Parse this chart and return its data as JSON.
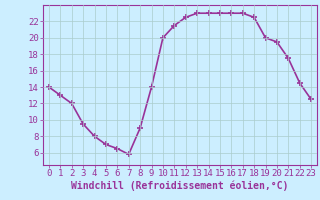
{
  "x": [
    0,
    1,
    2,
    3,
    4,
    5,
    6,
    7,
    8,
    9,
    10,
    11,
    12,
    13,
    14,
    15,
    16,
    17,
    18,
    19,
    20,
    21,
    22,
    23
  ],
  "y": [
    14,
    13,
    12,
    9.5,
    8,
    7,
    6.5,
    5.8,
    9,
    14,
    20,
    21.5,
    22.5,
    23,
    23,
    23,
    23,
    23,
    22.5,
    20,
    19.5,
    17.5,
    14.5,
    12.5
  ],
  "line_color": "#993399",
  "marker": "+",
  "marker_color": "#993399",
  "bg_color": "#cceeff",
  "grid_color": "#aacccc",
  "xlabel": "Windchill (Refroidissement éolien,°C)",
  "xlim": [
    -0.5,
    23.5
  ],
  "ylim": [
    4.5,
    24
  ],
  "xticks": [
    0,
    1,
    2,
    3,
    4,
    5,
    6,
    7,
    8,
    9,
    10,
    11,
    12,
    13,
    14,
    15,
    16,
    17,
    18,
    19,
    20,
    21,
    22,
    23
  ],
  "yticks": [
    6,
    8,
    10,
    12,
    14,
    16,
    18,
    20,
    22
  ],
  "tick_color": "#993399",
  "label_color": "#993399",
  "spine_color": "#993399",
  "font_size": 6.5,
  "xlabel_fontsize": 7,
  "linewidth": 1.2,
  "markersize": 4,
  "markeredgewidth": 1.2
}
